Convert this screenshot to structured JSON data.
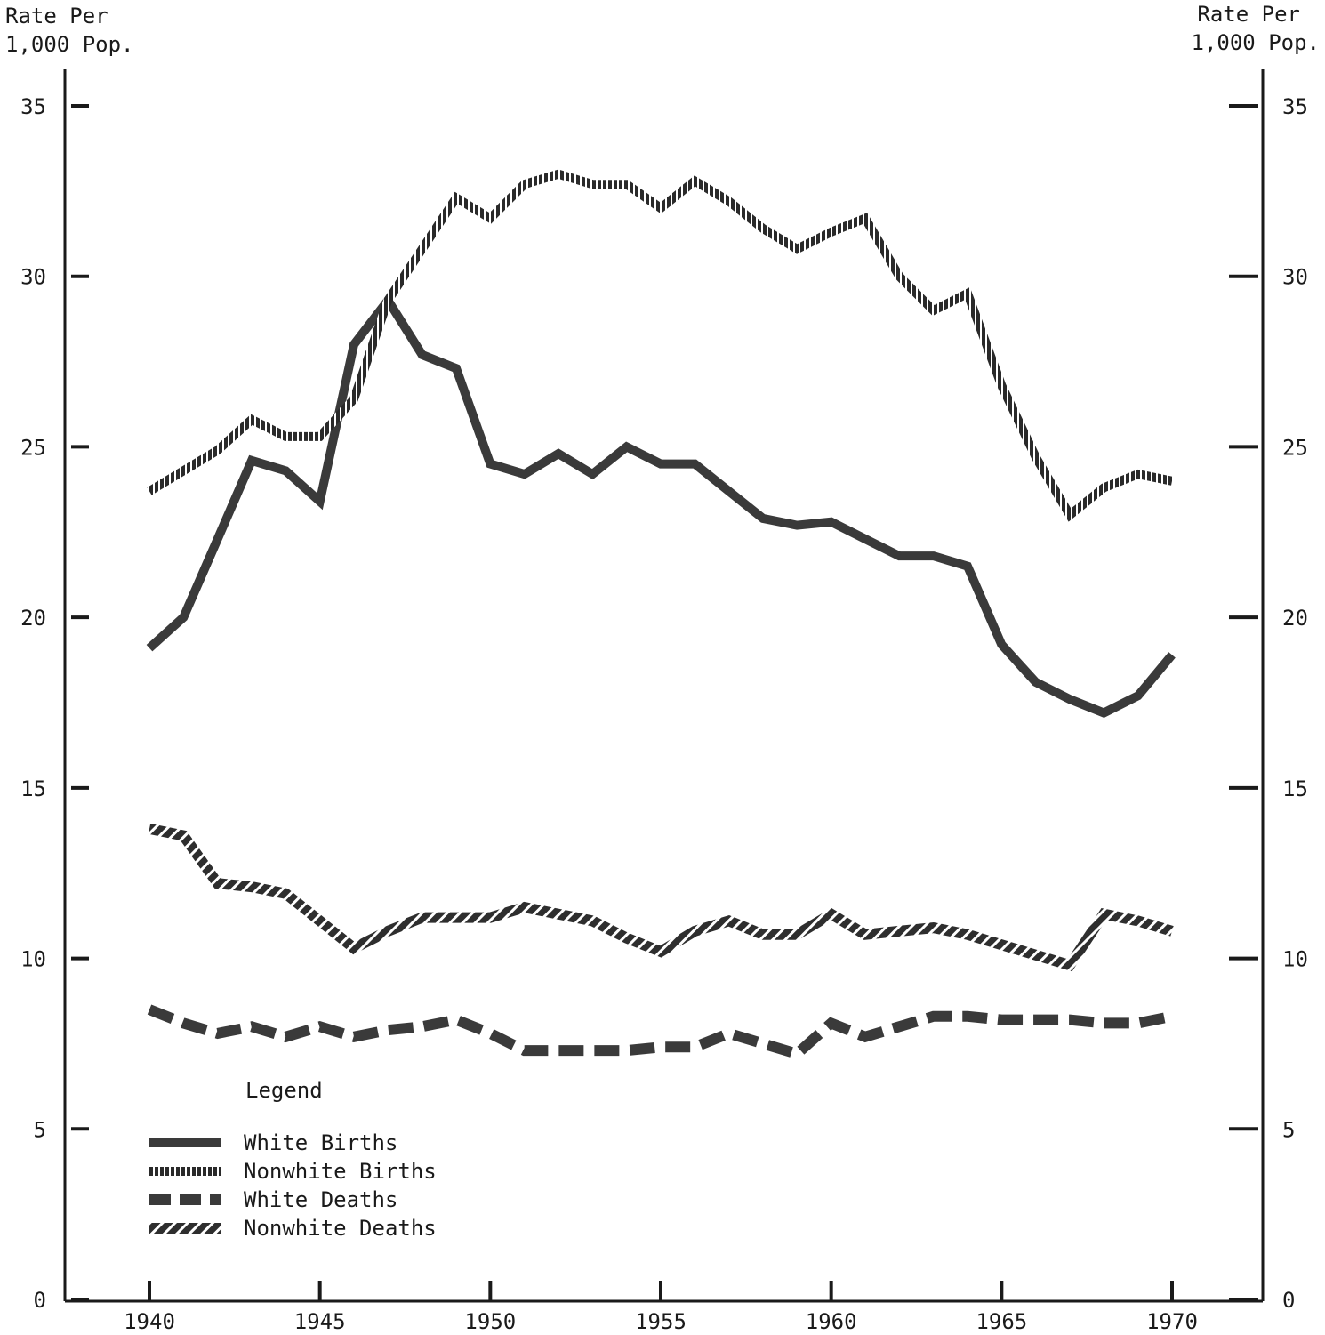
{
  "chart_data": {
    "type": "line",
    "left_axis_label": [
      "Rate Per",
      "1,000 Pop."
    ],
    "right_axis_label": [
      "Rate Per",
      "1,000 Pop."
    ],
    "x_ticks": [
      1940,
      1945,
      1950,
      1955,
      1960,
      1965,
      1970
    ],
    "y_ticks": [
      0,
      5,
      10,
      15,
      20,
      25,
      30,
      35
    ],
    "xlim": [
      1937.5,
      1972.5
    ],
    "ylim": [
      0,
      36
    ],
    "grid": false,
    "legend_title": "Legend",
    "legend_position": "bottom-left",
    "x": [
      1940,
      1941,
      1942,
      1943,
      1944,
      1945,
      1946,
      1947,
      1948,
      1949,
      1950,
      1951,
      1952,
      1953,
      1954,
      1955,
      1956,
      1957,
      1958,
      1959,
      1960,
      1961,
      1962,
      1963,
      1964,
      1965,
      1966,
      1967,
      1968,
      1969,
      1970
    ],
    "series": [
      {
        "name": "White Births",
        "style": "solid",
        "values": [
          19.1,
          20.0,
          22.3,
          24.6,
          24.3,
          23.4,
          28.0,
          29.3,
          27.7,
          27.3,
          24.5,
          24.2,
          24.8,
          24.2,
          25.0,
          24.5,
          24.5,
          23.7,
          22.9,
          22.7,
          22.8,
          22.3,
          21.8,
          21.8,
          21.5,
          19.2,
          18.1,
          17.6,
          17.2,
          17.7,
          18.9
        ]
      },
      {
        "name": "Nonwhite Births",
        "style": "dotted",
        "values": [
          23.7,
          24.3,
          24.9,
          25.8,
          25.3,
          25.3,
          26.4,
          29.3,
          30.8,
          32.3,
          31.7,
          32.7,
          33.0,
          32.7,
          32.7,
          32.0,
          32.8,
          32.2,
          31.4,
          30.8,
          31.3,
          31.7,
          30.0,
          29.0,
          29.5,
          26.8,
          24.7,
          23.0,
          23.8,
          24.2,
          24.0
        ]
      },
      {
        "name": "White Deaths",
        "style": "dashed",
        "values": [
          8.5,
          8.1,
          7.8,
          8.0,
          7.7,
          8.0,
          7.7,
          7.9,
          8.0,
          8.2,
          7.8,
          7.3,
          7.3,
          7.3,
          7.3,
          7.4,
          7.4,
          7.8,
          7.5,
          7.2,
          8.1,
          7.7,
          8.0,
          8.3,
          8.3,
          8.2,
          8.2,
          8.2,
          8.1,
          8.1,
          8.3
        ]
      },
      {
        "name": "Nonwhite Deaths",
        "style": "hatched",
        "values": [
          13.8,
          13.6,
          12.2,
          12.1,
          11.9,
          11.1,
          10.3,
          10.8,
          11.2,
          11.2,
          11.2,
          11.5,
          11.3,
          11.1,
          10.6,
          10.2,
          10.8,
          11.1,
          10.7,
          10.7,
          11.3,
          10.7,
          10.8,
          10.9,
          10.7,
          10.4,
          10.1,
          9.8,
          11.3,
          11.1,
          10.8
        ]
      }
    ]
  },
  "colors": {
    "ink": "#1a1a1a",
    "line": "#333333",
    "background": "#ffffff"
  }
}
